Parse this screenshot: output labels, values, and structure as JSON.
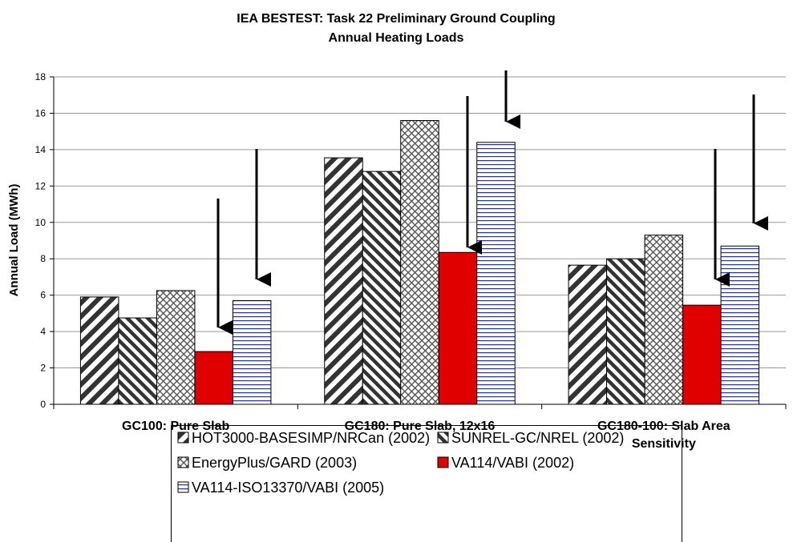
{
  "chart_data": {
    "type": "bar",
    "title": "IEA BESTEST: Task 22 Preliminary Ground Coupling",
    "subtitle": "Annual Heating Loads",
    "y_label": "Annual Load (MWh)",
    "categories": [
      "GC100: Pure Slab",
      "GC180: Pure Slab, 12x16",
      "GC180-100: Slab Area Sensitivity"
    ],
    "series": [
      {
        "name": "HOT3000-BASESIMP/NRCan (2002)",
        "color": "#333333",
        "pattern": "wide-diagonal-up",
        "values": [
          5.9,
          13.55,
          7.65
        ]
      },
      {
        "name": "SUNREL-GC/NREL (2002)",
        "color": "#333333",
        "pattern": "diagonal-down",
        "values": [
          4.75,
          12.8,
          8.0
        ]
      },
      {
        "name": "EnergyPlus/GARD (2003)",
        "color": "#555555",
        "pattern": "dotted-grid",
        "values": [
          6.25,
          15.6,
          9.3
        ]
      },
      {
        "name": "VA114/VABI (2002)",
        "color": "#e00000",
        "pattern": "solid",
        "values": [
          2.9,
          8.35,
          5.45
        ]
      },
      {
        "name": "VA114-ISO13370/VABI (2005)",
        "color": "#1f2fd0",
        "pattern": "horizontal",
        "values": [
          5.7,
          14.4,
          8.7
        ]
      }
    ],
    "ylim": [
      0,
      18
    ],
    "yticks": [
      0,
      2,
      4,
      6,
      8,
      10,
      12,
      14,
      16,
      18
    ],
    "grid": true
  }
}
